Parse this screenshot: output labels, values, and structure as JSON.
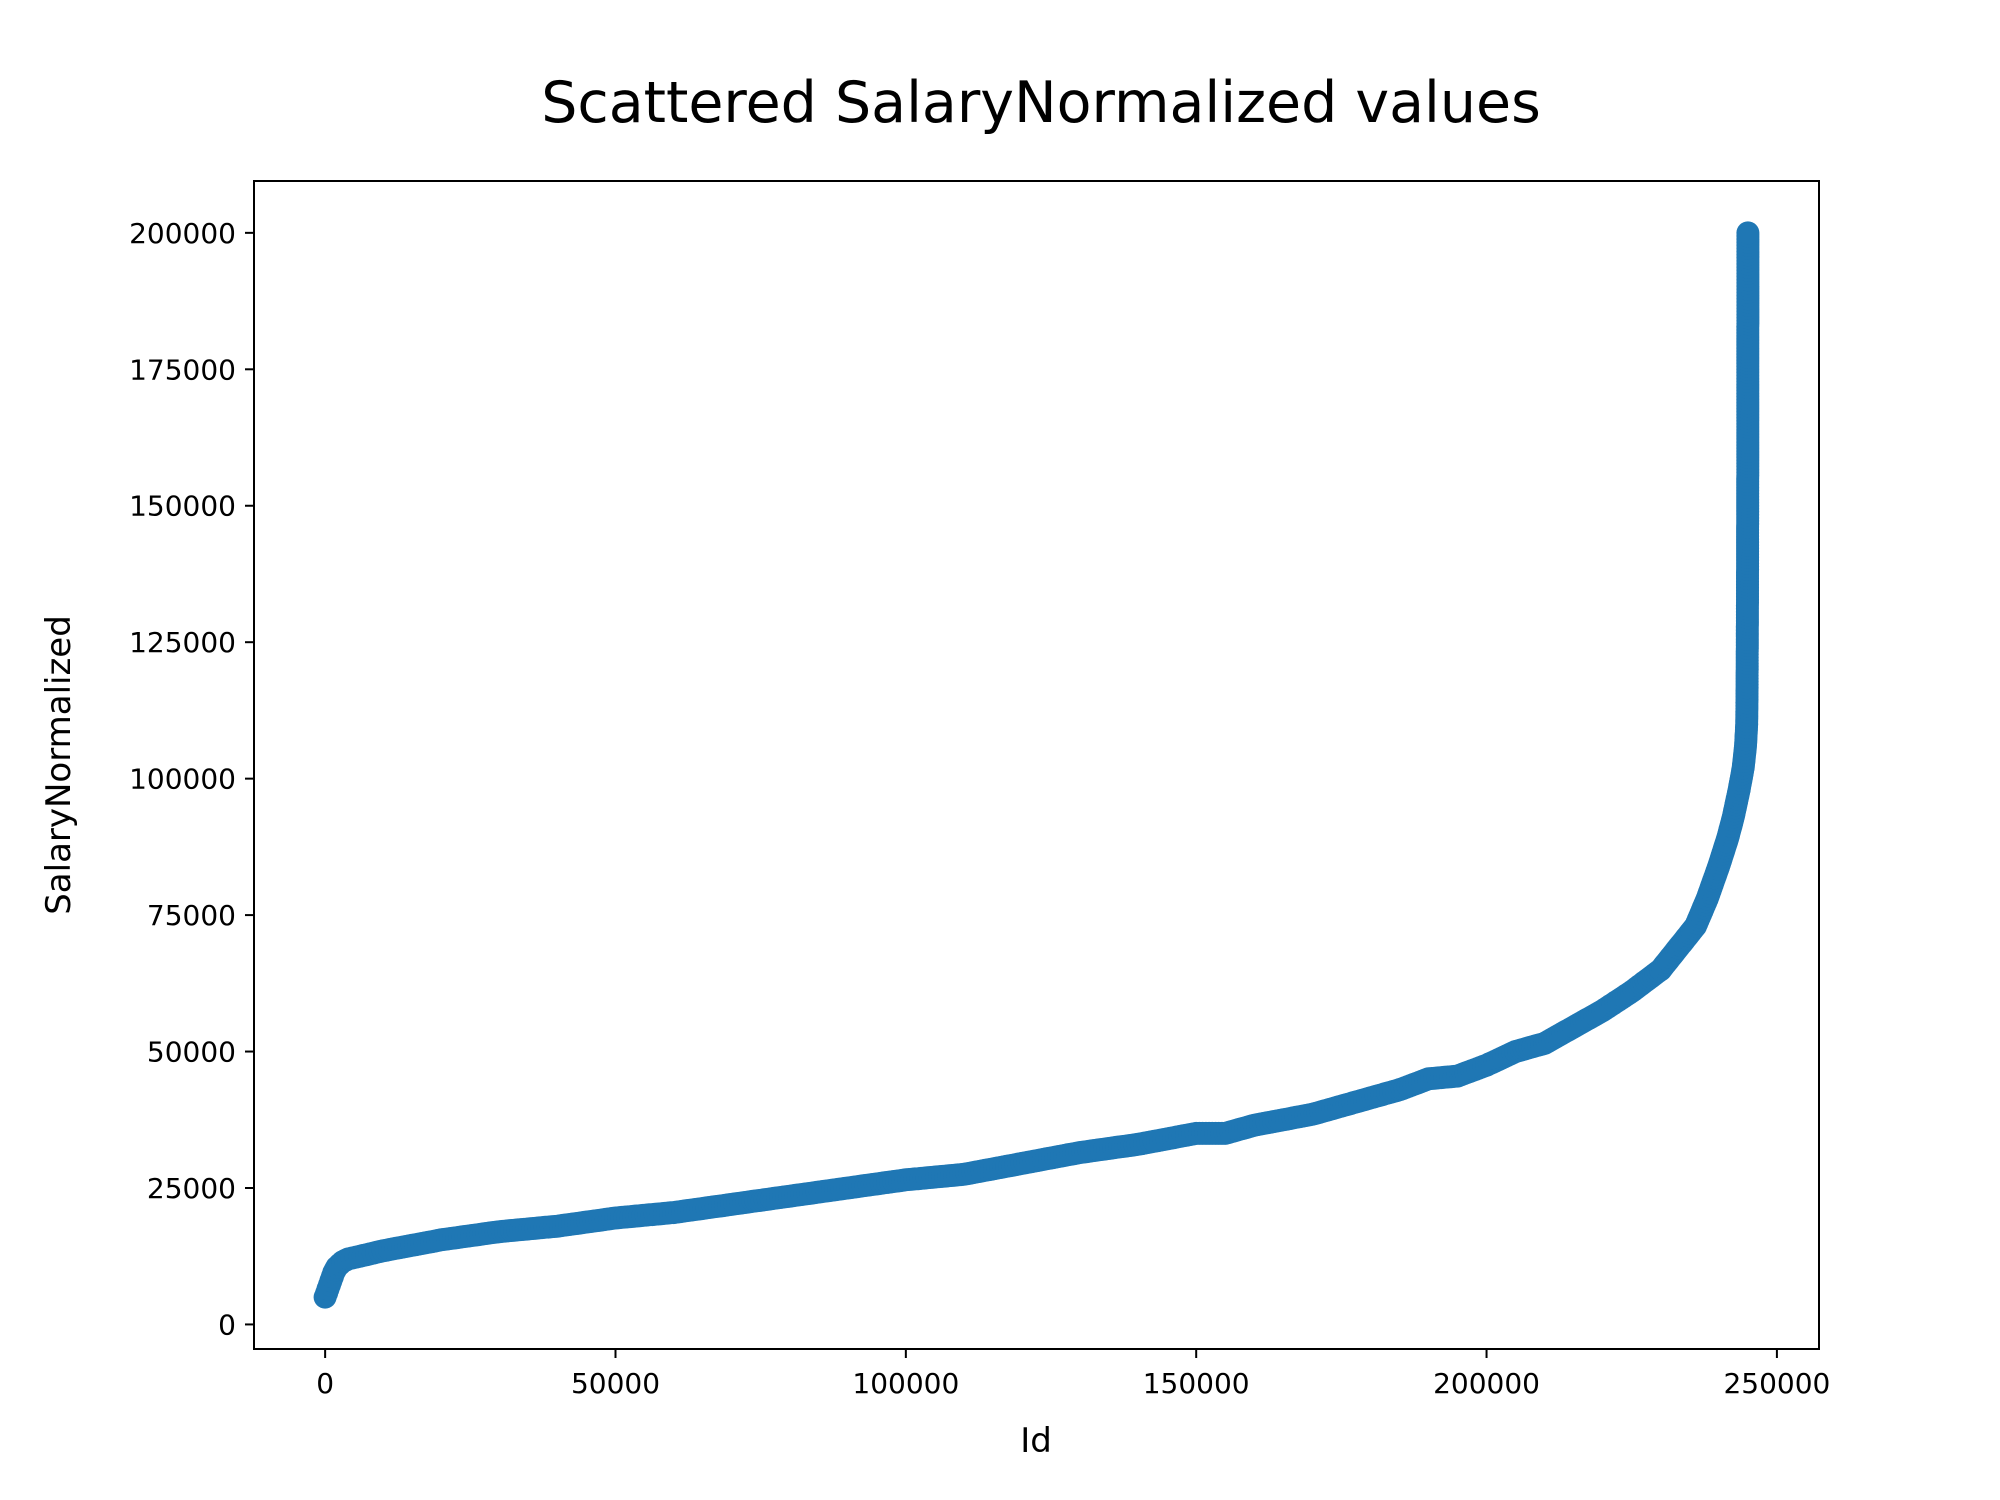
{
  "chart_data": {
    "type": "scatter",
    "title": "Scattered SalaryNormalized values",
    "xlabel": "Id",
    "ylabel": "SalaryNormalized",
    "xlim": [
      -12250,
      257250
    ],
    "ylim": [
      -4500,
      209500
    ],
    "xticks": [
      0,
      50000,
      100000,
      150000,
      200000,
      250000
    ],
    "yticks": [
      0,
      25000,
      50000,
      75000,
      100000,
      125000,
      150000,
      175000,
      200000
    ],
    "grid": false,
    "legend": "none",
    "marker_color": "#1f77b4",
    "series": [
      {
        "x": [
          0,
          500,
          1000,
          1500,
          2000,
          3000,
          4000,
          6000,
          10000,
          15000,
          20000,
          30000,
          40000,
          50000,
          60000,
          70000,
          80000,
          90000,
          100000,
          110000,
          120000,
          130000,
          140000,
          145000,
          150000,
          155000,
          160000,
          165000,
          170000,
          175000,
          180000,
          185000,
          190000,
          195000,
          200000,
          205000,
          210000,
          215000,
          220000,
          225000,
          230000,
          233000,
          236000,
          238000,
          240000,
          241500,
          242500,
          243500,
          244200,
          244600,
          244800,
          244850,
          244880,
          244900,
          244920,
          244940,
          244950,
          244960,
          244970,
          244980,
          244985,
          244990,
          244993,
          244995,
          244997,
          244998,
          244999,
          245000
        ],
        "y": [
          5000,
          6500,
          8000,
          9500,
          10500,
          11500,
          12000,
          12500,
          13500,
          14500,
          15500,
          17000,
          18000,
          19500,
          20500,
          22000,
          23500,
          25000,
          26500,
          27500,
          29500,
          31500,
          33000,
          34000,
          35000,
          35000,
          36500,
          37500,
          38500,
          40000,
          41500,
          43000,
          45000,
          45500,
          47500,
          50000,
          51500,
          54500,
          57500,
          61000,
          65000,
          69000,
          73000,
          78000,
          84000,
          89000,
          93000,
          98000,
          102000,
          106000,
          110000,
          115000,
          120000,
          125000,
          130000,
          135000,
          140000,
          145000,
          150000,
          155000,
          160000,
          165000,
          170000,
          175000,
          180000,
          185000,
          192000,
          200000
        ]
      }
    ]
  }
}
